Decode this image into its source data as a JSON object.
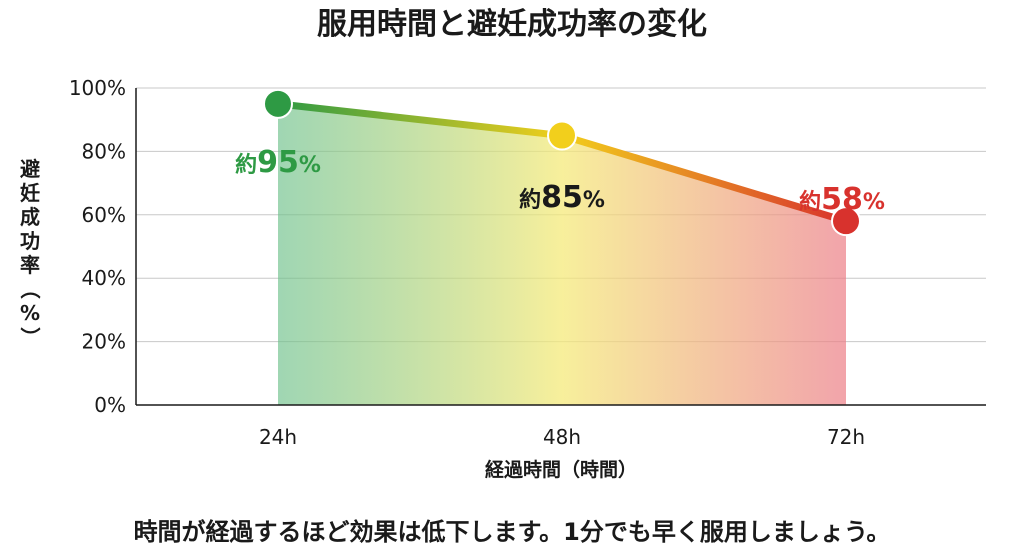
{
  "title": "服用時間と避妊成功率の変化",
  "note": "時間が経過するほど効果は低下します。1分でも早く服用しましょう。",
  "colors": {
    "green": "#2e9a44",
    "yellow": "#f2cf1c",
    "red": "#d8322d",
    "label_mid": "#1a1a1a"
  },
  "chart_data": {
    "type": "area",
    "title": "服用時間と避妊成功率の変化",
    "xlabel": "経過時間（時間）",
    "ylabel": "避妊成功率（%）",
    "categories": [
      "24h",
      "48h",
      "72h"
    ],
    "values": [
      95,
      85,
      58
    ],
    "ylim": [
      0,
      100
    ],
    "yticks": [
      0,
      20,
      40,
      60,
      80,
      100
    ],
    "ytick_labels": [
      "0%",
      "20%",
      "40%",
      "60%",
      "80%",
      "100%"
    ],
    "grid": true,
    "data_labels": [
      {
        "prefix": "約",
        "value": "95",
        "unit": "%"
      },
      {
        "prefix": "約",
        "value": "85",
        "unit": "%"
      },
      {
        "prefix": "約",
        "value": "58",
        "unit": "%"
      }
    ]
  }
}
